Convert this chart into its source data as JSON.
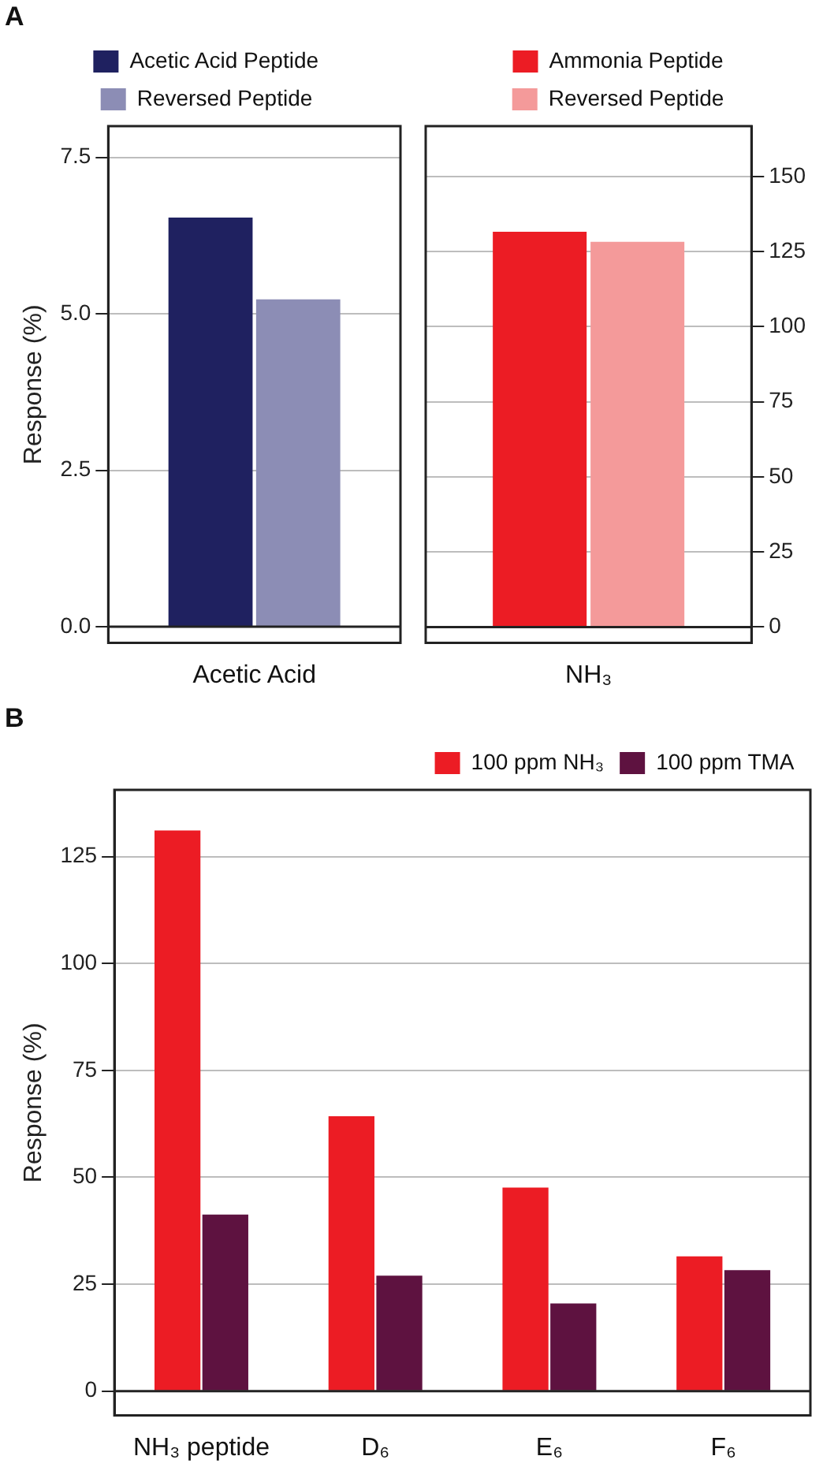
{
  "chart_data": [
    {
      "type": "bar",
      "annotations": [
        "A"
      ],
      "ylabel": "Response (%)",
      "categories": [
        "Acetic Acid"
      ],
      "series": [
        {
          "name": "Acetic Acid Peptide",
          "color": "#1f2160",
          "values": [
            6.54
          ]
        },
        {
          "name": "Reversed Peptide",
          "color": "#8c8db5",
          "values": [
            5.23
          ]
        }
      ],
      "ylim": [
        -0.26,
        8.0
      ],
      "yticks": [
        {
          "value": 0,
          "label": "0.0"
        },
        {
          "value": 2.5,
          "label": "2.5"
        },
        {
          "value": 5,
          "label": "5.0"
        },
        {
          "value": 7.5,
          "label": "7.5"
        }
      ],
      "grid": true,
      "legend": "top"
    },
    {
      "type": "bar",
      "categories": [
        "NH₃"
      ],
      "series": [
        {
          "name": "Ammonia Peptide",
          "color": "#ec1c24",
          "values": [
            131.6
          ],
          "axis": "y2"
        },
        {
          "name": "Reversed Peptide",
          "color": "#f49a9a",
          "values": [
            128.3
          ],
          "axis": "y2"
        }
      ],
      "y2lim": [
        -5.3,
        166.8
      ],
      "y2ticks": [
        0,
        25,
        50,
        75,
        100,
        125,
        150
      ],
      "grid": true,
      "legend": "top"
    },
    {
      "type": "bar",
      "annotations": [
        "B"
      ],
      "ylabel": "Response (%)",
      "categories": [
        "NH₃ peptide",
        "D₆",
        "E₆",
        "F₆"
      ],
      "series": [
        {
          "name": "100 ppm NH₃",
          "color": "#ec1c24",
          "values": [
            131.1,
            64.3,
            47.6,
            31.5
          ]
        },
        {
          "name": "100 ppm TMA",
          "color": "#5e1240",
          "values": [
            41.3,
            27.0,
            20.5,
            28.3
          ]
        }
      ],
      "ylim": [
        -5.7,
        140.6
      ],
      "yticks": [
        0,
        25,
        50,
        75,
        100,
        125
      ],
      "grid": true,
      "legend": "top right"
    }
  ]
}
